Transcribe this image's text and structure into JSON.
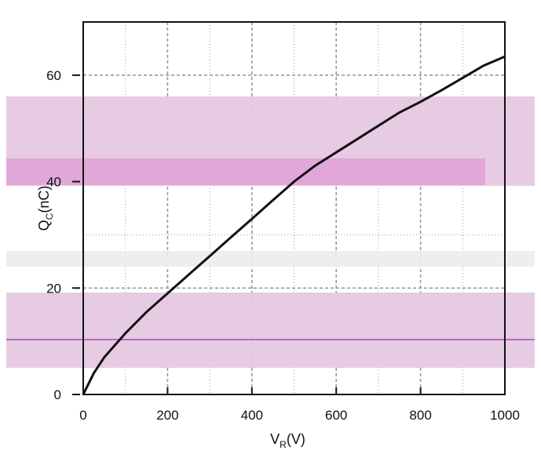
{
  "chart_data": {
    "type": "line",
    "title": "",
    "xlabel": "V",
    "xlabel_sub": "R",
    "xlabel_unit": "(V)",
    "ylabel": "Q",
    "ylabel_sub": "C",
    "ylabel_unit": "(nC)",
    "xlim": [
      0,
      1000
    ],
    "ylim": [
      0,
      70
    ],
    "x_ticks": [
      0,
      200,
      400,
      600,
      800,
      1000
    ],
    "x_tick_labels": [
      "0",
      "200",
      "400",
      "600",
      "800",
      "1000"
    ],
    "y_ticks": [
      0,
      20,
      40,
      60
    ],
    "y_tick_labels": [
      "0",
      "20",
      "40",
      "60"
    ],
    "grid": true,
    "series": [
      {
        "x": [
          0,
          25,
          50,
          100,
          150,
          200,
          250,
          300,
          350,
          400,
          450,
          500,
          550,
          600,
          650,
          700,
          750,
          800,
          850,
          900,
          950,
          1000
        ],
        "y": [
          0,
          4,
          7,
          11.5,
          15.5,
          19,
          22.5,
          26,
          29.5,
          33,
          36.5,
          40,
          43,
          45.5,
          48,
          50.5,
          53,
          55,
          57.2,
          59.5,
          61.8,
          63.5
        ]
      }
    ],
    "line_color": "#111111",
    "grid_color": "#9a9a9a",
    "artifact_color": "#e6c8e2"
  }
}
